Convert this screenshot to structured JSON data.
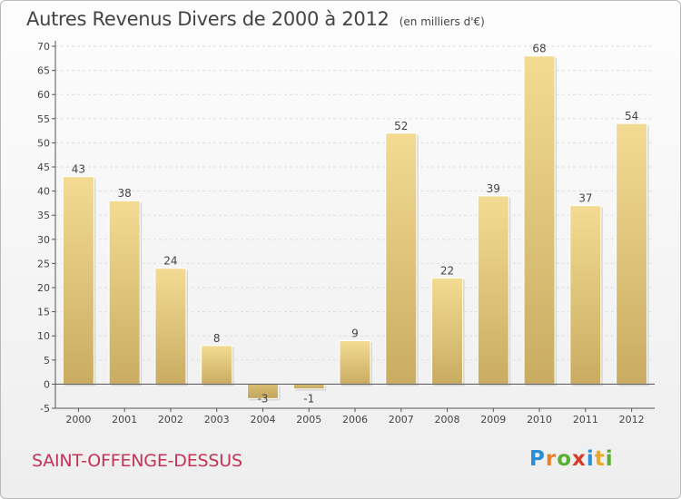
{
  "header": {
    "title": "Autres Revenus Divers de 2000 à 2012",
    "unit": "(en milliers d'€)"
  },
  "footer": {
    "commune": "SAINT-OFFENGE-DESSUS",
    "logo_letters": [
      "P",
      "r",
      "o",
      "x",
      "i",
      "t",
      "i"
    ],
    "logo_colors": [
      "#2a8fd6",
      "#e8822a",
      "#58b030",
      "#d63a2a",
      "#2a8fd6",
      "#e8a82a",
      "#58b030"
    ]
  },
  "colors": {
    "bar": "#e8cf85",
    "grid": "#dddddd",
    "axis": "#555555",
    "text": "#444444",
    "accent": "#c4325a"
  },
  "chart_data": {
    "type": "bar",
    "title": "Autres Revenus Divers de 2000 à 2012",
    "categories": [
      "2000",
      "2001",
      "2002",
      "2003",
      "2004",
      "2005",
      "2006",
      "2007",
      "2008",
      "2009",
      "2010",
      "2011",
      "2012"
    ],
    "values": [
      43,
      38,
      24,
      8,
      -3,
      -1,
      9,
      52,
      22,
      39,
      68,
      37,
      54
    ],
    "value_labels": [
      "43",
      "38",
      "24",
      "8",
      "-3",
      "-1",
      "9",
      "52",
      "22",
      "39",
      "68",
      "37",
      "54"
    ],
    "ylim": [
      -5,
      70
    ],
    "yticks": [
      -5,
      0,
      5,
      10,
      15,
      20,
      25,
      30,
      35,
      40,
      45,
      50,
      55,
      60,
      65,
      70
    ],
    "grid": true,
    "legend": "none"
  }
}
